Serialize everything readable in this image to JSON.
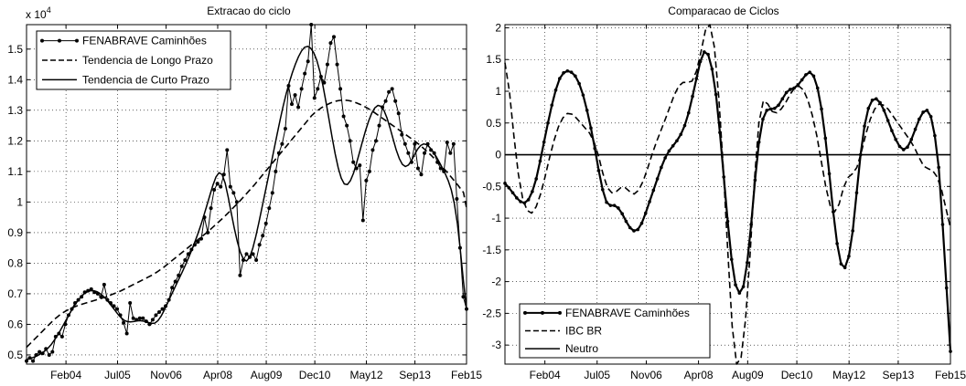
{
  "chart_data": [
    {
      "type": "line",
      "title": "Extracao do ciclo",
      "xlabel": "",
      "ylabel": "",
      "y_exponent_label": "x 10",
      "y_exponent_power": "4",
      "x_ticks": [
        "Feb04",
        "Jul05",
        "Nov06",
        "Apr08",
        "Aug09",
        "Dec10",
        "May12",
        "Sep13",
        "Feb15"
      ],
      "x_tick_index": [
        13,
        30,
        46,
        63,
        79,
        95,
        112,
        128,
        145
      ],
      "xlim_index": [
        0,
        145
      ],
      "y_tick_labels": [
        "0.5",
        "0.6",
        "0.7",
        "0.8",
        "0.9",
        "1",
        "1.1",
        "1.2",
        "1.3",
        "1.4",
        "1.5"
      ],
      "y_ticks": [
        5000,
        6000,
        7000,
        8000,
        9000,
        10000,
        11000,
        12000,
        13000,
        14000,
        15000
      ],
      "ylim": [
        4700,
        15800
      ],
      "legend_position": "top-left",
      "legend": [
        "FENABRAVE  Caminhões",
        "Tendencia de Longo Prazo",
        "Tendencia de Curto Prazo"
      ],
      "series": [
        {
          "name": "FENABRAVE  Caminhões",
          "style": "line-dots",
          "values": [
            4800,
            4900,
            4800,
            5000,
            5100,
            5050,
            5200,
            5000,
            5100,
            5600,
            5700,
            5600,
            6000,
            6300,
            6500,
            6700,
            6800,
            6900,
            7050,
            7100,
            7150,
            7050,
            7000,
            6900,
            7300,
            6800,
            6700,
            6600,
            6500,
            6300,
            6050,
            5700,
            6700,
            6200,
            6150,
            6200,
            6200,
            6100,
            6000,
            6150,
            6300,
            6400,
            6500,
            6600,
            6800,
            7200,
            7400,
            7600,
            7900,
            8100,
            8300,
            8450,
            8600,
            8700,
            8800,
            9500,
            9000,
            9800,
            10400,
            10600,
            10500,
            10900,
            11700,
            10500,
            10300,
            10000,
            7600,
            8100,
            8300,
            8200,
            8300,
            8100,
            8600,
            8900,
            9300,
            9800,
            10300,
            11000,
            11600,
            11900,
            12400,
            13800,
            13200,
            13500,
            13100,
            13700,
            14200,
            14600,
            15800,
            13400,
            13700,
            14100,
            13900,
            14500,
            15200,
            15400,
            14500,
            13700,
            12800,
            12500,
            12000,
            11300,
            11100,
            11200,
            9400,
            10700,
            11000,
            11700,
            12000,
            12500,
            13100,
            13300,
            13600,
            13700,
            13300,
            12900,
            12200,
            11900,
            11600,
            11300,
            11900,
            11100,
            10900,
            11600,
            11900,
            11700,
            11600,
            11300,
            11100,
            11000,
            11950,
            11600,
            11900,
            10100,
            8500,
            6900,
            6500
          ]
        },
        {
          "name": "Tendencia de Longo Prazo",
          "style": "dashed",
          "values": [
            5250,
            5350,
            5450,
            5550,
            5650,
            5750,
            5850,
            5950,
            6050,
            6150,
            6230,
            6310,
            6380,
            6440,
            6490,
            6540,
            6580,
            6620,
            6650,
            6680,
            6710,
            6740,
            6770,
            6800,
            6830,
            6860,
            6890,
            6930,
            6970,
            7010,
            7050,
            7090,
            7140,
            7190,
            7240,
            7290,
            7340,
            7390,
            7440,
            7490,
            7540,
            7590,
            7650,
            7710,
            7780,
            7850,
            7930,
            8010,
            8090,
            8170,
            8250,
            8330,
            8410,
            8490,
            8570,
            8650,
            8730,
            8810,
            8890,
            8970,
            9050,
            9140,
            9230,
            9320,
            9410,
            9500,
            9600,
            9700,
            9800,
            9900,
            10000,
            10110,
            10220,
            10330,
            10440,
            10550,
            10670,
            10790,
            10910,
            11030,
            11150,
            11270,
            11390,
            11510,
            11630,
            11750,
            11870,
            11990,
            12110,
            12230,
            12350,
            12470,
            12590,
            12710,
            12830,
            12920,
            13000,
            13070,
            13130,
            13180,
            13230,
            13270,
            13300,
            13320,
            13330,
            13330,
            13320,
            13300,
            13270,
            13230,
            13190,
            13140,
            13090,
            13030,
            12970,
            12900,
            12830,
            12760,
            12690,
            12620,
            12550,
            12480,
            12410,
            12340,
            12270,
            12200,
            12130,
            12060,
            11990,
            11910,
            11830,
            11740,
            11650,
            11560,
            11460,
            11360,
            11260,
            11150,
            11040,
            10930,
            10810,
            10690,
            10570,
            10440,
            10310,
            9800
          ]
        },
        {
          "name": "Tendencia de Curto Prazo",
          "style": "solid",
          "values": [
            4850,
            4880,
            4910,
            4950,
            5000,
            5060,
            5130,
            5220,
            5330,
            5470,
            5620,
            5790,
            5970,
            6150,
            6330,
            6500,
            6660,
            6800,
            6920,
            7010,
            7070,
            7100,
            7100,
            7070,
            7010,
            6930,
            6830,
            6710,
            6580,
            6450,
            6320,
            6210,
            6130,
            6090,
            6080,
            6090,
            6110,
            6120,
            6110,
            6090,
            6060,
            6030,
            6040,
            6120,
            6260,
            6450,
            6660,
            6880,
            7090,
            7300,
            7510,
            7720,
            7940,
            8170,
            8410,
            8670,
            8940,
            9230,
            9550,
            9880,
            10220,
            10550,
            10820,
            10960,
            10900,
            10620,
            10160,
            9640,
            9140,
            8700,
            8350,
            8130,
            8070,
            8190,
            8470,
            8860,
            9310,
            9790,
            10270,
            10750,
            11230,
            11720,
            12210,
            12690,
            13140,
            13550,
            13910,
            14230,
            14510,
            14750,
            14940,
            15060,
            15090,
            15030,
            14880,
            14630,
            14270,
            13810,
            13270,
            12700,
            12120,
            11580,
            11120,
            10780,
            10590,
            10570,
            10700,
            10940,
            11270,
            11630,
            12000,
            12350,
            12660,
            12910,
            13080,
            13160,
            13130,
            12990,
            12740,
            12410,
            12050,
            11700,
            11420,
            11230,
            11160,
            11210,
            11360,
            11550,
            11730,
            11850,
            11900,
            11870,
            11780,
            11650,
            11500,
            11320,
            11130,
            10930,
            10700,
            10400,
            9950,
            9300,
            8400,
            7400,
            6500
          ]
        }
      ]
    },
    {
      "type": "line",
      "title": "Comparacao de Ciclos",
      "xlabel": "",
      "ylabel": "",
      "x_ticks": [
        "Feb04",
        "Jul05",
        "Nov06",
        "Apr08",
        "Aug09",
        "Dec10",
        "May12",
        "Sep13",
        "Feb15"
      ],
      "x_tick_index": [
        13,
        30,
        46,
        63,
        79,
        95,
        112,
        128,
        145
      ],
      "xlim_index": [
        0,
        145
      ],
      "y_tick_labels": [
        "-3",
        "-2.5",
        "-2",
        "-1.5",
        "-1",
        "-0.5",
        "0",
        "0.5",
        "1",
        "1.5",
        "2"
      ],
      "y_ticks": [
        -3,
        -2.5,
        -2,
        -1.5,
        -1,
        -0.5,
        0,
        0.5,
        1,
        1.5,
        2
      ],
      "ylim": [
        -3.3,
        2.05
      ],
      "legend_position": "bottom-left",
      "legend": [
        "FENABRAVE  Caminhões",
        "IBC BR",
        "Neutro"
      ],
      "series": [
        {
          "name": "FENABRAVE  Caminhões",
          "style": "line-dots",
          "values": [
            -0.45,
            -0.52,
            -0.6,
            -0.68,
            -0.74,
            -0.76,
            -0.71,
            -0.58,
            -0.38,
            -0.1,
            0.2,
            0.5,
            0.78,
            1.02,
            1.2,
            1.29,
            1.32,
            1.3,
            1.24,
            1.12,
            0.94,
            0.7,
            0.42,
            0.1,
            -0.25,
            -0.55,
            -0.75,
            -0.8,
            -0.8,
            -0.84,
            -0.93,
            -1.05,
            -1.15,
            -1.2,
            -1.18,
            -1.08,
            -0.92,
            -0.74,
            -0.56,
            -0.38,
            -0.2,
            -0.05,
            0.06,
            0.14,
            0.22,
            0.32,
            0.46,
            0.66,
            0.92,
            1.2,
            1.47,
            1.62,
            1.58,
            1.35,
            0.95,
            0.35,
            -0.35,
            -1.05,
            -1.65,
            -2.05,
            -2.18,
            -2.08,
            -1.7,
            -1.1,
            -0.4,
            0.2,
            0.56,
            0.7,
            0.72,
            0.73,
            0.78,
            0.88,
            0.98,
            1.03,
            1.05,
            1.1,
            1.18,
            1.26,
            1.3,
            1.24,
            1.05,
            0.72,
            0.26,
            -0.3,
            -0.9,
            -1.4,
            -1.72,
            -1.78,
            -1.6,
            -1.2,
            -0.6,
            0.0,
            0.45,
            0.73,
            0.86,
            0.88,
            0.82,
            0.7,
            0.54,
            0.38,
            0.24,
            0.13,
            0.08,
            0.12,
            0.24,
            0.4,
            0.56,
            0.67,
            0.7,
            0.6,
            0.3,
            -0.2,
            -1.1,
            -2.1,
            -3.1
          ]
        },
        {
          "name": "IBC BR",
          "style": "dashed",
          "values": [
            1.45,
            1.0,
            0.3,
            -0.3,
            -0.7,
            -0.88,
            -0.92,
            -0.82,
            -0.62,
            -0.35,
            -0.05,
            0.22,
            0.44,
            0.58,
            0.65,
            0.64,
            0.58,
            0.5,
            0.42,
            0.34,
            0.2,
            -0.02,
            -0.3,
            -0.52,
            -0.6,
            -0.58,
            -0.52,
            -0.52,
            -0.58,
            -0.62,
            -0.56,
            -0.42,
            -0.22,
            0.0,
            0.2,
            0.38,
            0.56,
            0.75,
            0.94,
            1.08,
            1.14,
            1.14,
            1.16,
            1.32,
            1.62,
            1.96,
            2.05,
            1.7,
            0.9,
            -0.2,
            -1.5,
            -2.7,
            -3.3,
            -3.2,
            -2.6,
            -1.6,
            -0.4,
            0.5,
            0.85,
            0.8,
            0.68,
            0.66,
            0.72,
            0.82,
            0.95,
            1.05,
            1.08,
            1.02,
            0.86,
            0.62,
            0.3,
            -0.1,
            -0.5,
            -0.8,
            -0.9,
            -0.78,
            -0.52,
            -0.36,
            -0.3,
            -0.2,
            0.04,
            0.32,
            0.56,
            0.72,
            0.8,
            0.78,
            0.72,
            0.62,
            0.52,
            0.42,
            0.32,
            0.22,
            0.1,
            -0.05,
            -0.18,
            -0.22,
            -0.25,
            -0.35,
            -0.55,
            -0.85,
            -1.15
          ]
        },
        {
          "name": "Neutro",
          "style": "solid",
          "values": [
            0,
            0
          ]
        }
      ]
    }
  ]
}
